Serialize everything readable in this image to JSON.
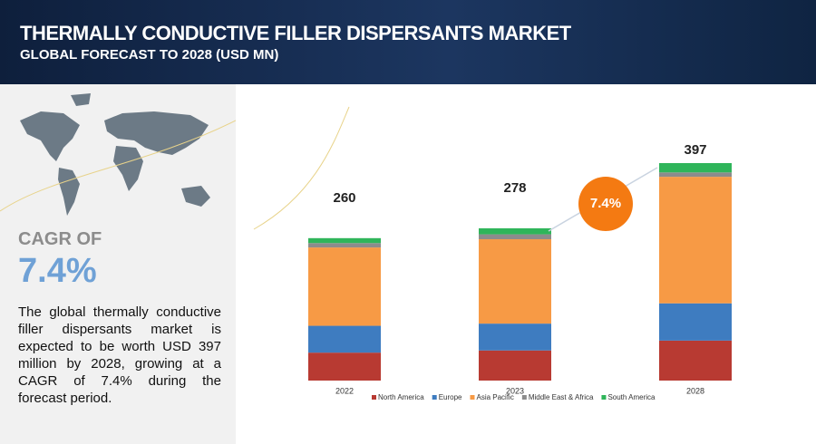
{
  "header": {
    "title": "THERMALLY CONDUCTIVE FILLER DISPERSANTS MARKET",
    "subtitle": "GLOBAL FORECAST TO 2028 (USD MN)"
  },
  "summary": {
    "cagr_label": "CAGR OF",
    "cagr": "7.4%",
    "description": "The global thermally conductive filler dispersants market is expected to be worth USD 397 million by 2028, growing at a CAGR of 7.4% during the forecast period."
  },
  "chart_data": {
    "type": "stacked_bar",
    "categories": [
      "2022",
      "2023",
      "2028"
    ],
    "totals": [
      260,
      278,
      397
    ],
    "badge": "7.4%",
    "series": [
      {
        "name": "North America",
        "color": "#b83a32",
        "values": [
          51,
          55,
          73
        ]
      },
      {
        "name": "Europe",
        "color": "#3e7cc0",
        "values": [
          49,
          49,
          68
        ]
      },
      {
        "name": "Asia Pacific",
        "color": "#f79a45",
        "values": [
          143,
          154,
          231
        ]
      },
      {
        "name": "Middle East & Africa",
        "color": "#8c8c8c",
        "values": [
          8,
          9,
          8
        ]
      },
      {
        "name": "South America",
        "color": "#2fb55a",
        "values": [
          9,
          11,
          17
        ]
      }
    ]
  }
}
